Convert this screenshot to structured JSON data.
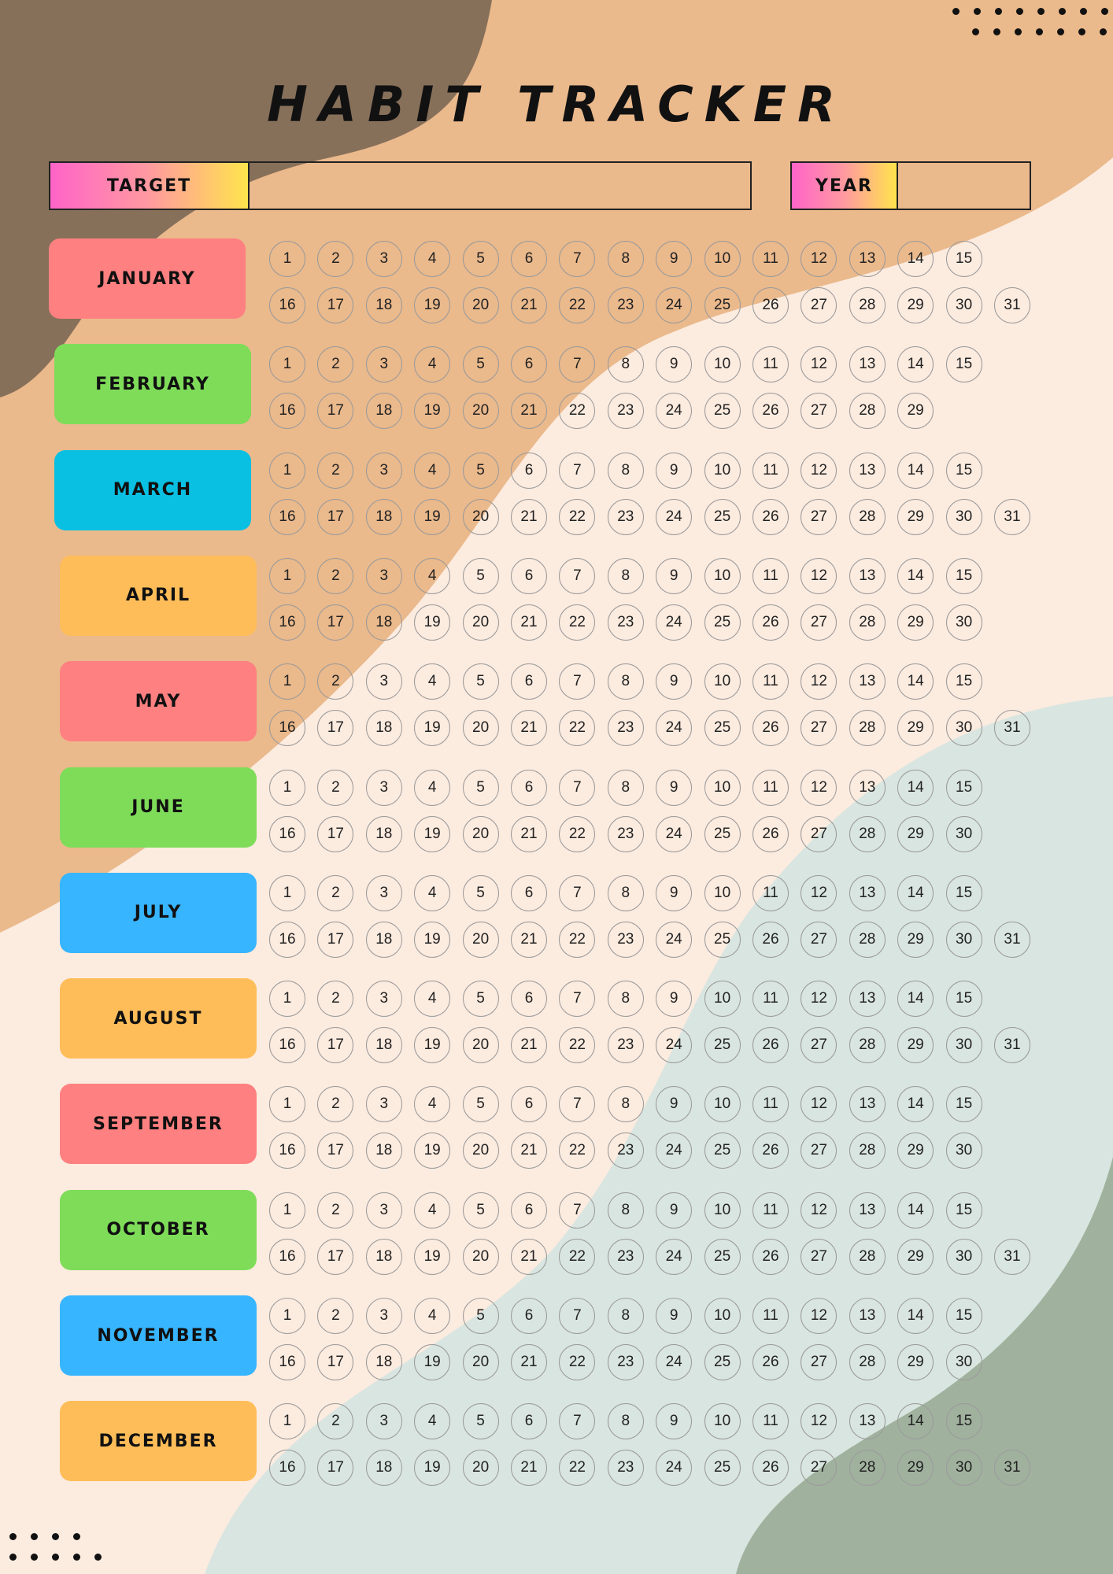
{
  "title": "HABIT TRACKER",
  "target": {
    "label": "TARGET",
    "value": ""
  },
  "year": {
    "label": "YEAR",
    "value": ""
  },
  "colors": {
    "background": "#fcebdf",
    "brown_blob": "#87705a",
    "tan_blob": "#eab98c",
    "mint_blob": "#d9e5e0",
    "sage_blob": "#a0b29e",
    "pink": "#ff8080",
    "green": "#7edc59",
    "teal": "#0ac0e2",
    "blue": "#37b5ff",
    "orange": "#ffbd59"
  },
  "months": [
    {
      "name": "JANUARY",
      "days": 31,
      "color": "#ff8080"
    },
    {
      "name": "FEBRUARY",
      "days": 29,
      "color": "#7edc59"
    },
    {
      "name": "MARCH",
      "days": 31,
      "color": "#0ac0e2"
    },
    {
      "name": "APRIL",
      "days": 30,
      "color": "#ffbd59"
    },
    {
      "name": "MAY",
      "days": 31,
      "color": "#ff8080"
    },
    {
      "name": "JUNE",
      "days": 30,
      "color": "#7edc59"
    },
    {
      "name": "JULY",
      "days": 31,
      "color": "#37b5ff"
    },
    {
      "name": "AUGUST",
      "days": 31,
      "color": "#ffbd59"
    },
    {
      "name": "SEPTEMBER",
      "days": 30,
      "color": "#ff8080"
    },
    {
      "name": "OCTOBER",
      "days": 31,
      "color": "#7edc59"
    },
    {
      "name": "NOVEMBER",
      "days": 30,
      "color": "#37b5ff"
    },
    {
      "name": "DECEMBER",
      "days": 31,
      "color": "#ffbd59"
    }
  ]
}
